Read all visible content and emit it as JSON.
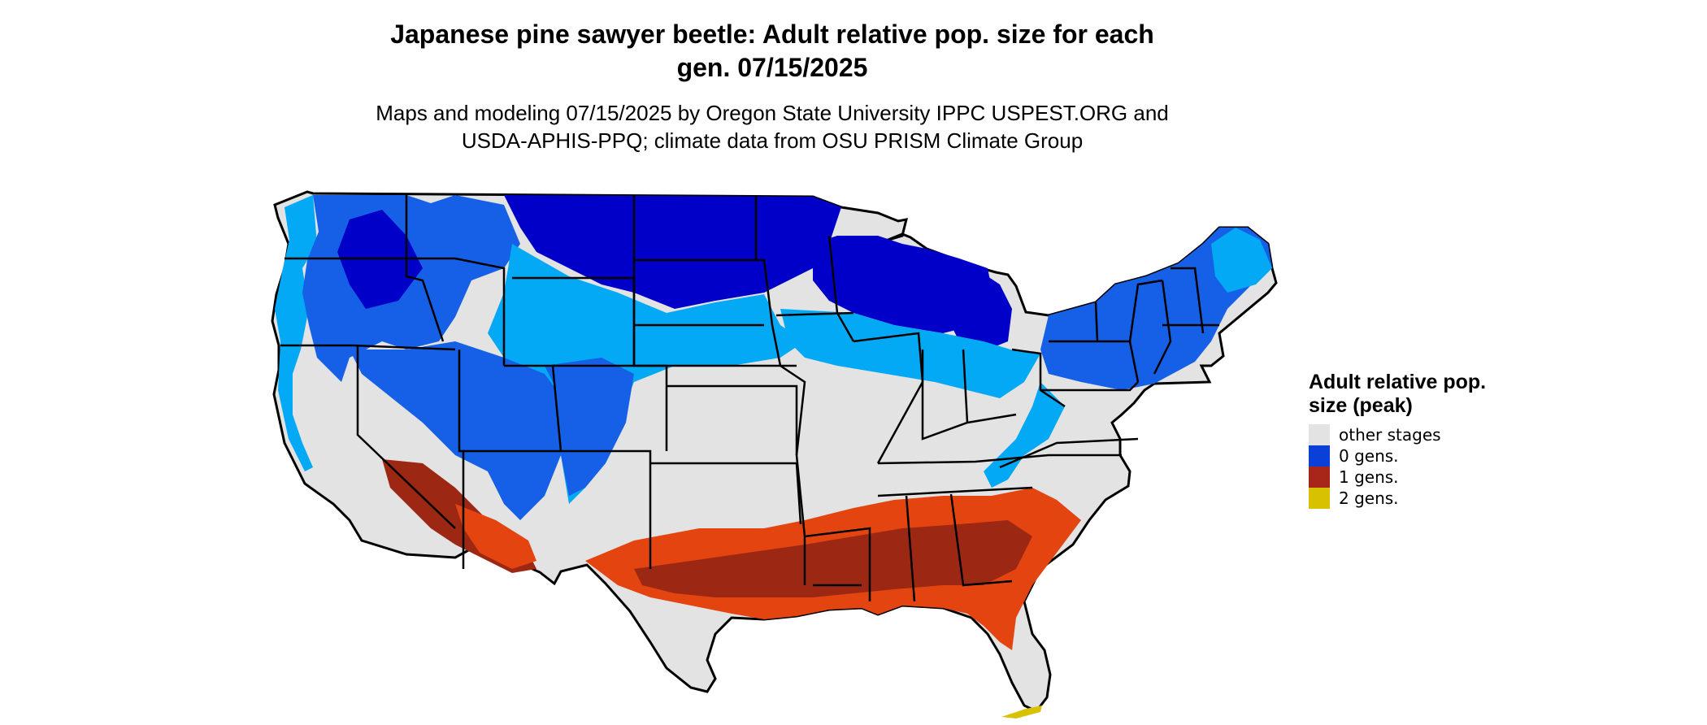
{
  "title": {
    "line1": "Japanese pine sawyer beetle: Adult relative pop. size for each",
    "line2": "gen. 07/15/2025"
  },
  "subtitle": {
    "line1": "Maps and modeling 07/15/2025 by Oregon State University IPPC USPEST.ORG and",
    "line2": "USDA-APHIS-PPQ; climate data from OSU PRISM Climate Group"
  },
  "legend": {
    "title": "Adult relative pop. size (peak)",
    "items": [
      {
        "label": "other stages",
        "color": "#e3e3e3"
      },
      {
        "label": "0 gens.",
        "color": "#0a3fd8"
      },
      {
        "label": "1 gens.",
        "color": "#a8251a"
      },
      {
        "label": "2 gens.",
        "color": "#d8c200"
      }
    ]
  },
  "map": {
    "colors": {
      "land": "#e3e3e3",
      "zero_gens_light": "#03a9f4",
      "zero_gens_mid": "#1560e6",
      "zero_gens_dark": "#0000c8",
      "one_gens_light": "#e44510",
      "one_gens_dark": "#9c2814",
      "two_gens": "#d8c200",
      "border": "#000000"
    }
  }
}
